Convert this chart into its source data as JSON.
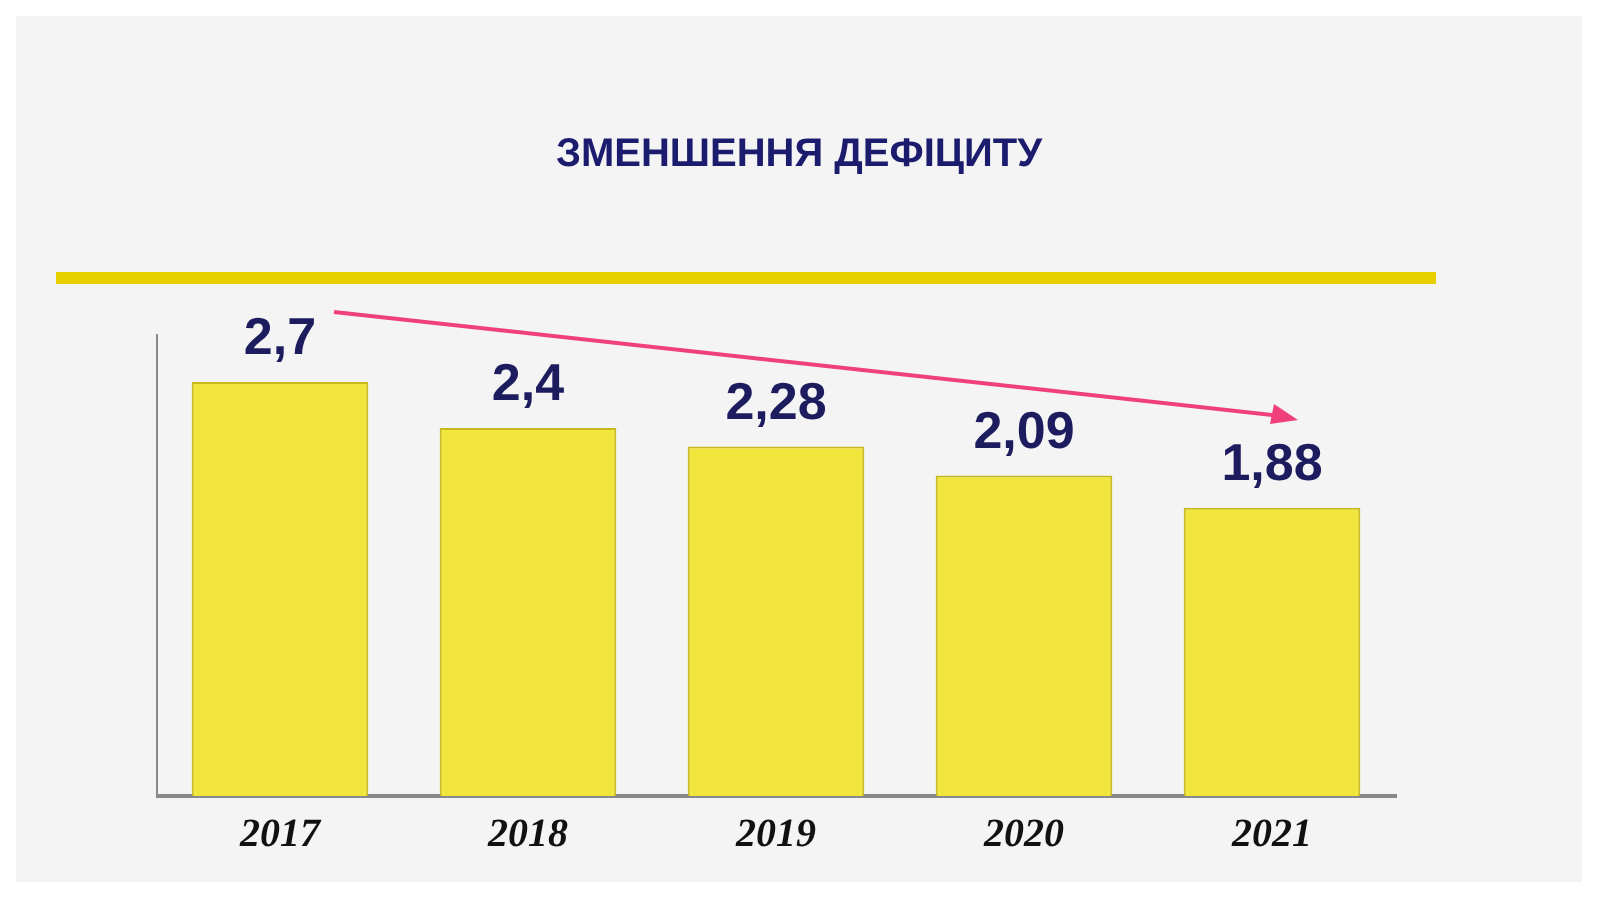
{
  "chart_data": {
    "type": "bar",
    "title": "ЗМЕНШЕННЯ ДЕФІЦИТУ",
    "categories": [
      "2017",
      "2018",
      "2019",
      "2020",
      "2021"
    ],
    "values": [
      2.7,
      2.4,
      2.28,
      2.09,
      1.88
    ],
    "value_labels": [
      "2,7",
      "2,4",
      "2,28",
      "2,09",
      "1,88"
    ],
    "color": "#f2e63c",
    "grid": false,
    "legend": false,
    "tick_labels": "x"
  }
}
